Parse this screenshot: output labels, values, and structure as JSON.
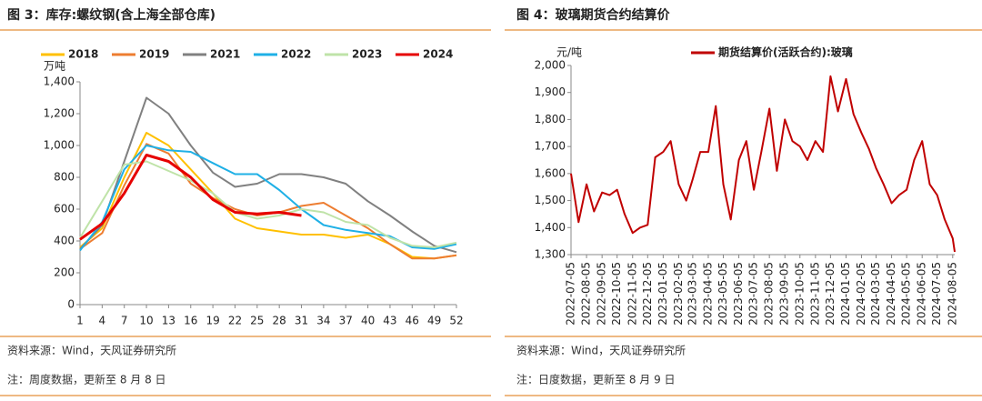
{
  "chart_data": [
    {
      "type": "line",
      "title": "图 3：库存:螺纹钢(含上海全部仓库)",
      "ylabel": "万吨",
      "x": [
        1,
        4,
        7,
        10,
        13,
        16,
        19,
        22,
        25,
        28,
        31,
        34,
        37,
        40,
        43,
        46,
        49,
        52
      ],
      "xlim": [
        1,
        52
      ],
      "xticks": [
        1,
        4,
        7,
        10,
        13,
        16,
        19,
        22,
        25,
        28,
        31,
        34,
        37,
        40,
        43,
        46,
        49,
        52
      ],
      "ylim": [
        0,
        1400
      ],
      "yticks": [
        0,
        200,
        400,
        600,
        800,
        {
          "value": 1000,
          "label": "1,000"
        },
        {
          "value": 1200,
          "label": "1,200"
        },
        {
          "value": 1400,
          "label": "1,400"
        }
      ],
      "grid": false,
      "legend": "top",
      "series": [
        {
          "name": "2018",
          "color": "#ffc000",
          "values": [
            360,
            480,
            800,
            1080,
            1000,
            850,
            700,
            540,
            480,
            460,
            440,
            440,
            420,
            440,
            380,
            300,
            290,
            310
          ]
        },
        {
          "name": "2019",
          "color": "#ed7d31",
          "values": [
            350,
            450,
            750,
            1010,
            950,
            760,
            670,
            600,
            560,
            580,
            620,
            640,
            560,
            480,
            380,
            290,
            290,
            310
          ]
        },
        {
          "name": "2021",
          "color": "#808080",
          "values": [
            350,
            500,
            900,
            1300,
            1200,
            1000,
            830,
            740,
            760,
            820,
            820,
            800,
            760,
            650,
            560,
            460,
            370,
            330
          ]
        },
        {
          "name": "2022",
          "color": "#1fb0e6",
          "values": [
            340,
            520,
            850,
            1000,
            970,
            960,
            890,
            820,
            820,
            720,
            600,
            500,
            470,
            450,
            430,
            360,
            350,
            380
          ]
        },
        {
          "name": "2023",
          "color": "#bfe3a8",
          "values": [
            420,
            650,
            880,
            900,
            840,
            780,
            700,
            580,
            540,
            560,
            600,
            580,
            520,
            500,
            420,
            370,
            360,
            390
          ]
        },
        {
          "name": "2024",
          "color": "#e60000",
          "values": [
            410,
            510,
            700,
            940,
            900,
            800,
            660,
            580,
            570,
            580,
            560,
            null,
            null,
            null,
            null,
            null,
            null,
            null
          ]
        }
      ],
      "source": "资料来源：Wind，天风证券研究所",
      "note": "注：周度数据，更新至 8 月 8 日"
    },
    {
      "type": "line",
      "title": "图 4：玻璃期货合约结算价",
      "ylabel": "元/吨",
      "x": [
        "2022-07-05",
        "2022-07-20",
        "2022-08-05",
        "2022-08-20",
        "2022-09-05",
        "2022-09-20",
        "2022-10-05",
        "2022-10-20",
        "2022-11-05",
        "2022-11-20",
        "2022-12-05",
        "2022-12-20",
        "2023-01-05",
        "2023-01-20",
        "2023-02-05",
        "2023-02-20",
        "2023-03-05",
        "2023-03-20",
        "2023-04-05",
        "2023-04-20",
        "2023-05-05",
        "2023-05-20",
        "2023-06-05",
        "2023-06-20",
        "2023-07-05",
        "2023-07-20",
        "2023-08-05",
        "2023-08-20",
        "2023-09-05",
        "2023-09-20",
        "2023-10-05",
        "2023-10-20",
        "2023-11-05",
        "2023-11-20",
        "2023-12-05",
        "2023-12-20",
        "2024-01-05",
        "2024-01-20",
        "2024-02-05",
        "2024-02-20",
        "2024-03-05",
        "2024-03-20",
        "2024-04-05",
        "2024-04-20",
        "2024-05-05",
        "2024-05-20",
        "2024-06-05",
        "2024-06-20",
        "2024-07-05",
        "2024-07-20",
        "2024-08-05",
        "2024-08-09"
      ],
      "xlim": [
        "2022-07-05",
        "2024-08-09"
      ],
      "xticks": [
        "2022-07-05",
        "2022-08-05",
        "2022-09-05",
        "2022-10-05",
        "2022-11-05",
        "2022-12-05",
        "2023-01-05",
        "2023-02-05",
        "2023-03-05",
        "2023-04-05",
        "2023-05-05",
        "2023-06-05",
        "2023-07-05",
        "2023-08-05",
        "2023-09-05",
        "2023-10-05",
        "2023-11-05",
        "2023-12-05",
        "2024-01-05",
        "2024-02-05",
        "2024-03-05",
        "2024-04-05",
        "2024-05-05",
        "2024-06-05",
        "2024-07-05",
        "2024-08-05"
      ],
      "ylim": [
        1300,
        2000
      ],
      "yticks": [
        {
          "value": 1300,
          "label": "1,300"
        },
        {
          "value": 1400,
          "label": "1,400"
        },
        {
          "value": 1500,
          "label": "1,500"
        },
        {
          "value": 1600,
          "label": "1,600"
        },
        {
          "value": 1700,
          "label": "1,700"
        },
        {
          "value": 1800,
          "label": "1,800"
        },
        {
          "value": 1900,
          "label": "1,900"
        },
        {
          "value": 2000,
          "label": "2,000"
        }
      ],
      "grid": false,
      "legend": "top",
      "series": [
        {
          "name": "期货结算价(活跃合约):玻璃",
          "color": "#c00000",
          "values": [
            1600,
            1420,
            1560,
            1460,
            1530,
            1520,
            1540,
            1450,
            1380,
            1400,
            1410,
            1660,
            1680,
            1720,
            1560,
            1500,
            1580,
            1680,
            1680,
            1850,
            1560,
            1430,
            1650,
            1720,
            1540,
            1680,
            1840,
            1610,
            1800,
            1720,
            1700,
            1650,
            1720,
            1680,
            1960,
            1830,
            1950,
            1820,
            1750,
            1690,
            1620,
            1560,
            1490,
            1520,
            1540,
            1650,
            1720,
            1560,
            1520,
            1430,
            1360,
            1310
          ]
        }
      ],
      "source": "资料来源：Wind，天风证券研究所",
      "note": "注：日度数据，更新至 8 月 9 日"
    }
  ]
}
